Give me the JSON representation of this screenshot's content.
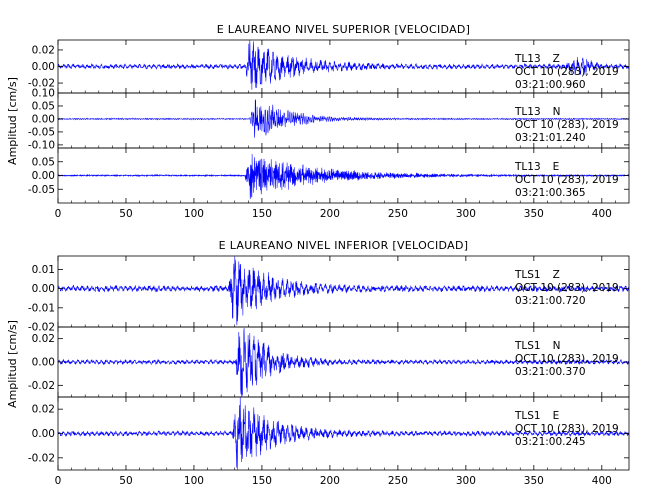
{
  "chart_data": [
    {
      "type": "line",
      "title": "E LAUREANO NIVEL SUPERIOR [VELOCIDAD]",
      "ylabel": "Amplitud [cm/s]",
      "xlabel": "",
      "xlim": [
        0,
        420
      ],
      "xticks": [
        "0",
        "50",
        "100",
        "150",
        "200",
        "250",
        "300",
        "350",
        "400"
      ],
      "trace_color": "#0000ff",
      "grid": false,
      "traces": [
        {
          "station": "TL13",
          "component": "Z",
          "date_line": "OCT 10 (283), 2019",
          "time_line": "03:21:00.960",
          "ylim": [
            -0.032,
            0.032
          ],
          "yticks": [
            0.02,
            0.0,
            -0.02
          ],
          "ytick_labels": [
            "0.02",
            "0.00",
            "-0.02"
          ],
          "onset": 137,
          "peak": 0.024,
          "decay": 0.035,
          "noise": 0.0022,
          "freq": 6,
          "late_event": {
            "t": 385,
            "amp": 0.007
          }
        },
        {
          "station": "TL13",
          "component": "N",
          "date_line": "OCT 10 (283), 2019",
          "time_line": "03:21:01.240",
          "ylim": [
            -0.112,
            0.1
          ],
          "yticks": [
            0.1,
            0.05,
            0.0,
            -0.05,
            -0.1
          ],
          "ytick_labels": [
            "0.10",
            "0.05",
            "0.00",
            "-0.05",
            "-0.10"
          ],
          "onset": 141,
          "peak": 0.07,
          "decay": 0.045,
          "noise": 0.002,
          "freq": 5
        },
        {
          "station": "TL13",
          "component": "E",
          "date_line": "OCT 10 (283), 2019",
          "time_line": "03:21:00.365",
          "ylim": [
            -0.1,
            0.1
          ],
          "yticks": [
            0.05,
            0.0,
            -0.05
          ],
          "ytick_labels": [
            "0.05",
            "0.00",
            "-0.05"
          ],
          "onset": 137,
          "peak": 0.065,
          "decay": 0.022,
          "noise": 0.002,
          "freq": 4
        }
      ]
    },
    {
      "type": "line",
      "title": "E LAUREANO NIVEL INFERIOR [VELOCIDAD]",
      "ylabel": "Amplitud [cm/s]",
      "xlabel": "",
      "xlim": [
        0,
        420
      ],
      "xticks": [
        "0",
        "50",
        "100",
        "150",
        "200",
        "250",
        "300",
        "350",
        "400"
      ],
      "trace_color": "#0000ff",
      "grid": false,
      "traces": [
        {
          "station": "TLS1",
          "component": "Z",
          "date_line": "OCT 10 (283), 2019",
          "time_line": "03:21:00.720",
          "ylim": [
            -0.02,
            0.017
          ],
          "yticks": [
            0.01,
            0.0,
            -0.01,
            -0.02
          ],
          "ytick_labels": [
            "0.01",
            "0.00",
            "-0.01",
            "-0.02"
          ],
          "onset": 125,
          "peak": 0.014,
          "decay": 0.04,
          "noise": 0.0012,
          "freq": 6
        },
        {
          "station": "TLS1",
          "component": "N",
          "date_line": "OCT 10 (283), 2019",
          "time_line": "03:21:00.370",
          "ylim": [
            -0.03,
            0.03
          ],
          "yticks": [
            0.02,
            0.0,
            -0.02
          ],
          "ytick_labels": [
            "0.02",
            "0.00",
            "-0.02"
          ],
          "onset": 130,
          "peak": 0.026,
          "decay": 0.05,
          "noise": 0.0015,
          "freq": 6
        },
        {
          "station": "TLS1",
          "component": "E",
          "date_line": "OCT 10 (283), 2019",
          "time_line": "03:21:00.245",
          "ylim": [
            -0.03,
            0.03
          ],
          "yticks": [
            0.02,
            0.0,
            -0.02
          ],
          "ytick_labels": [
            "0.02",
            "0.00",
            "-0.02"
          ],
          "onset": 128,
          "peak": 0.025,
          "decay": 0.045,
          "noise": 0.0016,
          "freq": 6
        }
      ]
    }
  ]
}
